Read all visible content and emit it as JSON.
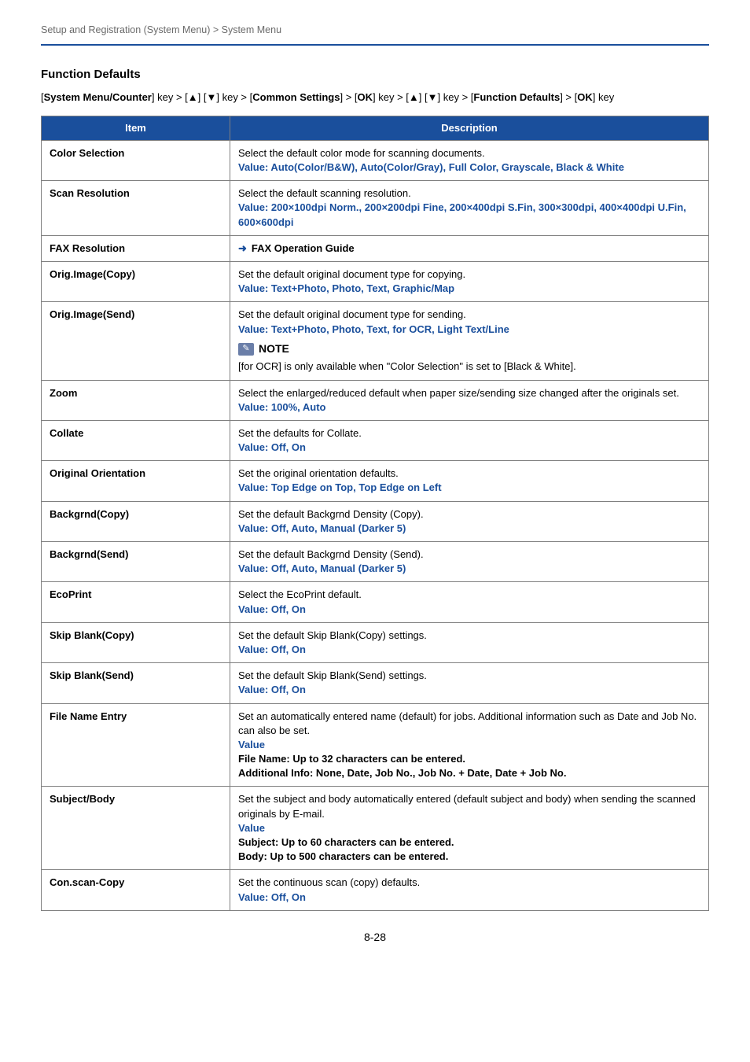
{
  "header": {
    "band": "Setup and Registration (System Menu) > System Menu"
  },
  "section_title": "Function Defaults",
  "breadcrumb_parts": {
    "p1": "[",
    "b1": "System Menu/Counter",
    "p2": "] key > [",
    "b2": "▲",
    "p3": "] [",
    "b3": "▼",
    "p4": "] key > [",
    "b4": "Common Settings",
    "p5": "] > [",
    "b5": "OK",
    "p6": "] key > [",
    "b6": "▲",
    "p7": "] [",
    "b7": "▼",
    "p8": "] key > [",
    "b8": "Function Defaults",
    "p9": "] > [",
    "b9": "OK",
    "p10": "] key"
  },
  "table": {
    "head": {
      "item": "Item",
      "desc": "Description"
    },
    "rows": {
      "color_selection": {
        "item": "Color Selection",
        "desc": "Select the default color mode for scanning documents.",
        "value_label": "Value",
        "value": ": Auto(Color/B&W), Auto(Color/Gray), Full Color, Grayscale, Black & White"
      },
      "scan_resolution": {
        "item": "Scan Resolution",
        "desc": "Select the default scanning resolution.",
        "value_label": "Value",
        "value": ": 200×100dpi Norm., 200×200dpi Fine, 200×400dpi S.Fin, 300×300dpi, 400×400dpi U.Fin, 600×600dpi"
      },
      "fax_resolution": {
        "item": "FAX Resolution",
        "link": "FAX Operation Guide"
      },
      "orig_copy": {
        "item": "Orig.Image(Copy)",
        "desc": "Set the default original document type for copying.",
        "value_label": "Value",
        "value": ": Text+Photo, Photo, Text, Graphic/Map"
      },
      "orig_send": {
        "item": "Orig.Image(Send)",
        "desc": "Set the default original document type for sending.",
        "value_label": "Value",
        "value": ": Text+Photo, Photo, Text, for OCR, Light Text/Line",
        "note_label": "NOTE",
        "note_text": "[for OCR] is only available when \"Color Selection\" is set to [Black & White]."
      },
      "zoom": {
        "item": "Zoom",
        "desc": "Select the enlarged/reduced default when paper size/sending size changed after the originals set.",
        "value_label": "Value",
        "value": ": 100%, Auto"
      },
      "collate": {
        "item": "Collate",
        "desc": "Set the defaults for Collate.",
        "value_label": "Value",
        "value": ": Off, On"
      },
      "orientation": {
        "item": "Original Orientation",
        "desc": "Set the original orientation defaults.",
        "value_label": "Value",
        "value": ": Top Edge on Top, Top Edge on Left"
      },
      "bg_copy": {
        "item": "Backgrnd(Copy)",
        "desc": "Set the default Backgrnd Density (Copy).",
        "value_label": "Value",
        "value": ": Off, Auto, Manual (Darker 5)"
      },
      "bg_send": {
        "item": "Backgrnd(Send)",
        "desc": "Set the default Backgrnd Density (Send).",
        "value_label": "Value",
        "value": ": Off, Auto, Manual (Darker 5)"
      },
      "ecoprint": {
        "item": "EcoPrint",
        "desc": "Select the EcoPrint default.",
        "value_label": "Value",
        "value": ": Off, On"
      },
      "skip_copy": {
        "item": "Skip Blank(Copy)",
        "desc": "Set the default Skip Blank(Copy) settings.",
        "value_label": "Value",
        "value": ": Off, On"
      },
      "skip_send": {
        "item": "Skip Blank(Send)",
        "desc": "Set the default Skip Blank(Send) settings.",
        "value_label": "Value",
        "value": ": Off, On"
      },
      "file_name": {
        "item": "File Name Entry",
        "desc": "Set an automatically entered name (default) for jobs. Additional information such as Date and Job No. can also be set.",
        "value_label": "Value",
        "l1": "File Name: Up to 32 characters can be entered.",
        "l2": "Additional Info: None, Date, Job No., Job No. + Date, Date + Job No."
      },
      "subject_body": {
        "item": "Subject/Body",
        "desc": "Set the subject and body automatically entered (default subject and body) when sending the scanned originals by E-mail.",
        "value_label": "Value",
        "l1": "Subject: Up to 60 characters can be entered.",
        "l2": "Body: Up to 500 characters can be entered."
      },
      "con_scan": {
        "item": "Con.scan-Copy",
        "desc": "Set the continuous scan (copy) defaults.",
        "value_label": "Value",
        "value": ": Off, On"
      }
    }
  },
  "page_number": "8-28"
}
